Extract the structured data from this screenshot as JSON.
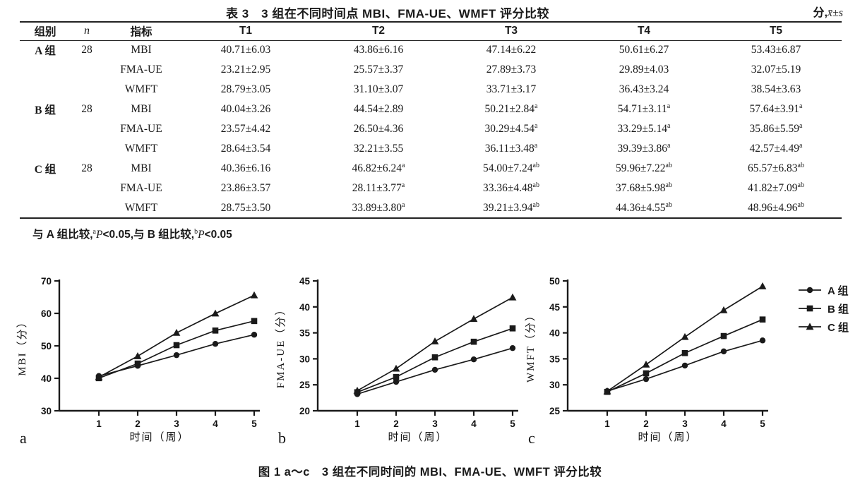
{
  "table": {
    "title": "表 3　3 组在不同时间点 MBI、FMA-UE、WMFT 评分比较",
    "unit_prefix": "分,",
    "unit_math": "x̄±s",
    "headers": [
      "组别",
      "n",
      "指标",
      "T1",
      "T2",
      "T3",
      "T4",
      "T5"
    ],
    "groups": [
      {
        "name": "A 组",
        "n": "28",
        "rows": [
          {
            "measure": "MBI",
            "values": [
              "40.71±6.03",
              "43.86±6.16",
              "47.14±6.22",
              "50.61±6.27",
              "53.43±6.87"
            ]
          },
          {
            "measure": "FMA-UE",
            "values": [
              "23.21±2.95",
              "25.57±3.37",
              "27.89±3.73",
              "29.89±4.03",
              "32.07±5.19"
            ]
          },
          {
            "measure": "WMFT",
            "values": [
              "28.79±3.05",
              "31.10±3.07",
              "33.71±3.17",
              "36.43±3.24",
              "38.54±3.63"
            ]
          }
        ]
      },
      {
        "name": "B 组",
        "n": "28",
        "rows": [
          {
            "measure": "MBI",
            "values": [
              "40.04±3.26",
              "44.54±2.89",
              "50.21±2.84^a",
              "54.71±3.11^a",
              "57.64±3.91^a"
            ]
          },
          {
            "measure": "FMA-UE",
            "values": [
              "23.57±4.42",
              "26.50±4.36",
              "30.29±4.54^a",
              "33.29±5.14^a",
              "35.86±5.59^a"
            ]
          },
          {
            "measure": "WMFT",
            "values": [
              "28.64±3.54",
              "32.21±3.55",
              "36.11±3.48^a",
              "39.39±3.86^a",
              "42.57±4.49^a"
            ]
          }
        ]
      },
      {
        "name": "C 组",
        "n": "28",
        "rows": [
          {
            "measure": "MBI",
            "values": [
              "40.36±6.16",
              "46.82±6.24^a",
              "54.00±7.24^ab",
              "59.96±7.22^ab",
              "65.57±6.83^ab"
            ]
          },
          {
            "measure": "FMA-UE",
            "values": [
              "23.86±3.57",
              "28.11±3.77^a",
              "33.36±4.48^ab",
              "37.68±5.98^ab",
              "41.82±7.09^ab"
            ]
          },
          {
            "measure": "WMFT",
            "values": [
              "28.75±3.50",
              "33.89±3.80^a",
              "39.21±3.94^ab",
              "44.36±4.55^ab",
              "48.96±4.96^ab"
            ]
          }
        ]
      }
    ],
    "footnote_segments": [
      {
        "t": "与 A 组比较,"
      },
      {
        "t": "a",
        "sup": true
      },
      {
        "t": "P",
        "it": true
      },
      {
        "t": "<0.05,与 B 组比较,"
      },
      {
        "t": "b",
        "sup": true
      },
      {
        "t": "P",
        "it": true
      },
      {
        "t": "<0.05"
      }
    ]
  },
  "figure": {
    "caption": "图 1 a～c　3 组在不同时间的 MBI、FMA-UE、WMFT 评分比较",
    "legend": [
      {
        "label": "A 组",
        "marker": "circle"
      },
      {
        "label": "B 组",
        "marker": "square"
      },
      {
        "label": "C 组",
        "marker": "triangle"
      }
    ],
    "line_color": "#1a1a1a"
  },
  "chart_data": [
    {
      "type": "line",
      "letter": "a",
      "ylabel": "MBI（分）",
      "xlabel": "时间（周）",
      "ylim": [
        30,
        70
      ],
      "yticks": [
        30,
        40,
        50,
        60,
        70
      ],
      "x": [
        1,
        2,
        3,
        4,
        5
      ],
      "grid": false,
      "legend_position": "right-of-figure",
      "series": [
        {
          "name": "A组",
          "marker": "circle",
          "values": [
            40.71,
            43.86,
            47.14,
            50.61,
            53.43
          ]
        },
        {
          "name": "B组",
          "marker": "square",
          "values": [
            40.04,
            44.54,
            50.21,
            54.71,
            57.64
          ]
        },
        {
          "name": "C组",
          "marker": "triangle",
          "values": [
            40.36,
            46.82,
            54.0,
            59.96,
            65.57
          ]
        }
      ]
    },
    {
      "type": "line",
      "letter": "b",
      "ylabel": "FMA-UE（分）",
      "xlabel": "时间（周）",
      "ylim": [
        20,
        45
      ],
      "yticks": [
        20,
        25,
        30,
        35,
        40,
        45
      ],
      "x": [
        1,
        2,
        3,
        4,
        5
      ],
      "grid": false,
      "legend_position": "right-of-figure",
      "series": [
        {
          "name": "A组",
          "marker": "circle",
          "values": [
            23.21,
            25.57,
            27.89,
            29.89,
            32.07
          ]
        },
        {
          "name": "B组",
          "marker": "square",
          "values": [
            23.57,
            26.5,
            30.29,
            33.29,
            35.86
          ]
        },
        {
          "name": "C组",
          "marker": "triangle",
          "values": [
            23.86,
            28.11,
            33.36,
            37.68,
            41.82
          ]
        }
      ]
    },
    {
      "type": "line",
      "letter": "c",
      "ylabel": "WMFT（分）",
      "xlabel": "时间（周）",
      "ylim": [
        25,
        50
      ],
      "yticks": [
        25,
        30,
        35,
        40,
        45,
        50
      ],
      "x": [
        1,
        2,
        3,
        4,
        5
      ],
      "grid": false,
      "legend_position": "right-of-figure",
      "series": [
        {
          "name": "A组",
          "marker": "circle",
          "values": [
            28.79,
            31.1,
            33.71,
            36.43,
            38.54
          ]
        },
        {
          "name": "B组",
          "marker": "square",
          "values": [
            28.64,
            32.21,
            36.11,
            39.39,
            42.57
          ]
        },
        {
          "name": "C组",
          "marker": "triangle",
          "values": [
            28.75,
            33.89,
            39.21,
            44.36,
            48.96
          ]
        }
      ]
    }
  ]
}
